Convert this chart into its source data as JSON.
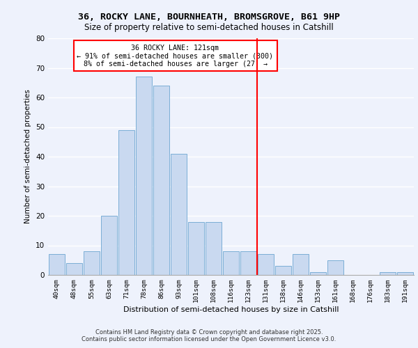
{
  "title1": "36, ROCKY LANE, BOURNHEATH, BROMSGROVE, B61 9HP",
  "title2": "Size of property relative to semi-detached houses in Catshill",
  "xlabel": "Distribution of semi-detached houses by size in Catshill",
  "ylabel": "Number of semi-detached properties",
  "categories": [
    "40sqm",
    "48sqm",
    "55sqm",
    "63sqm",
    "71sqm",
    "78sqm",
    "86sqm",
    "93sqm",
    "101sqm",
    "108sqm",
    "116sqm",
    "123sqm",
    "131sqm",
    "138sqm",
    "146sqm",
    "153sqm",
    "161sqm",
    "168sqm",
    "176sqm",
    "183sqm",
    "191sqm"
  ],
  "values": [
    7,
    4,
    8,
    20,
    49,
    67,
    64,
    41,
    18,
    18,
    8,
    8,
    7,
    3,
    7,
    1,
    5,
    0,
    0,
    1,
    1
  ],
  "bar_color": "#c9d9f0",
  "bar_edge_color": "#7aaed6",
  "vline_pos": 11.5,
  "annotation_line1": "36 ROCKY LANE: 121sqm",
  "annotation_line2": "← 91% of semi-detached houses are smaller (300)",
  "annotation_line3": "8% of semi-detached houses are larger (27) →",
  "ylim": [
    0,
    80
  ],
  "yticks": [
    0,
    10,
    20,
    30,
    40,
    50,
    60,
    70,
    80
  ],
  "background_color": "#eef2fc",
  "grid_color": "#ffffff",
  "footer1": "Contains HM Land Registry data © Crown copyright and database right 2025.",
  "footer2": "Contains public sector information licensed under the Open Government Licence v3.0."
}
